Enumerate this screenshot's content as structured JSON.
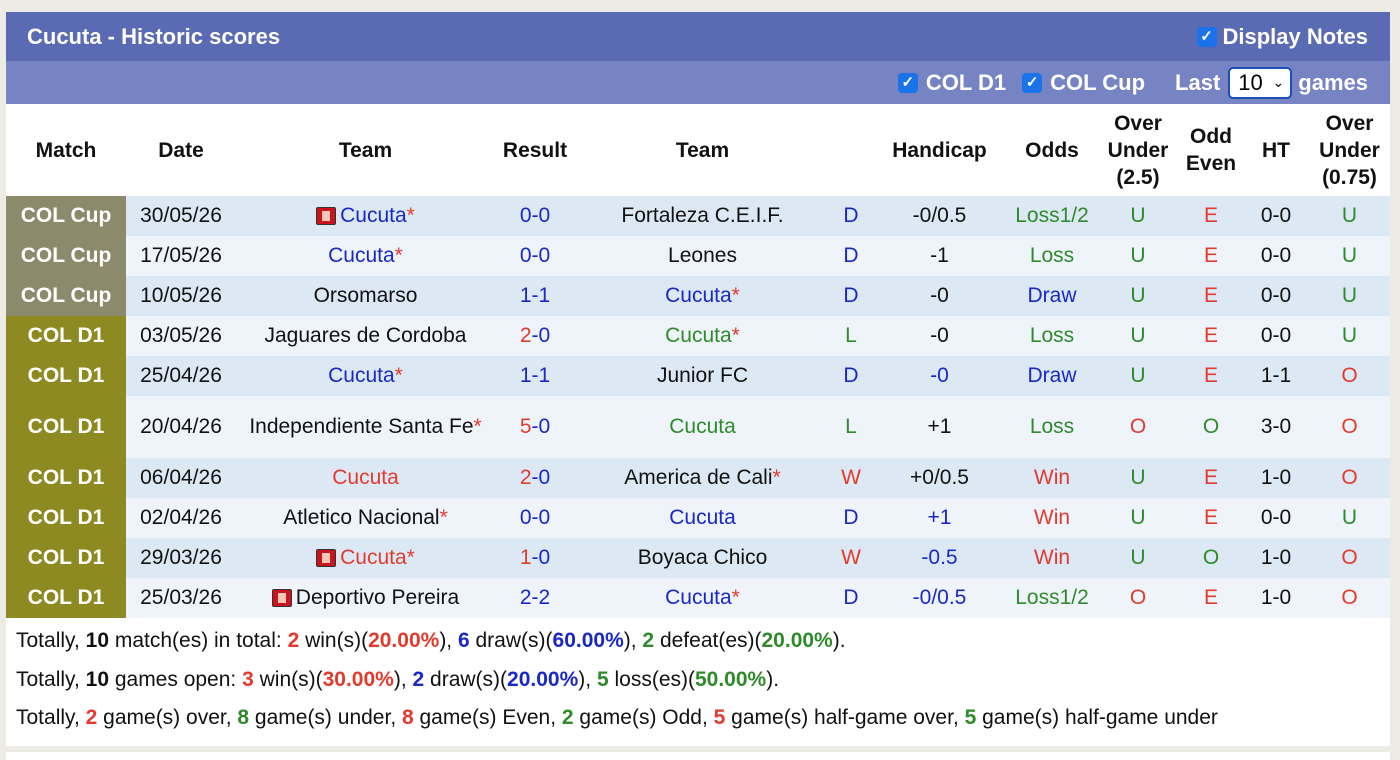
{
  "title": "Cucuta - Historic scores",
  "display_notes_label": "Display Notes",
  "filters": {
    "col_d1": "COL D1",
    "col_cup": "COL Cup",
    "last_label": "Last",
    "games_value": "10",
    "games_label": "games"
  },
  "columns": {
    "match": "Match",
    "date": "Date",
    "team1": "Team",
    "result": "Result",
    "team2": "Team",
    "handicap": "Handicap",
    "odds": "Odds",
    "ou_l1": "Over",
    "ou_l2": "Under",
    "ou_l3": "(2.5)",
    "oe_l1": "Odd",
    "oe_l2": "Even",
    "ht": "HT",
    "ou2_l1": "Over",
    "ou2_l2": "Under",
    "ou2_l3": "(0.75)"
  },
  "rows": [
    {
      "league": "COL Cup",
      "date": "30/05/26",
      "home": "Cucuta",
      "home_star": "*",
      "home_color": "b",
      "home_badge": true,
      "h_score": "0",
      "a_score": "0",
      "h_score_color": "b",
      "sep_color": "b",
      "a_score_color": "b",
      "away": "Fortaleza C.E.I.F.",
      "away_star": "",
      "away_color": "k",
      "away_badge": false,
      "res": "D",
      "res_color": "b",
      "handicap": "-0/0.5",
      "handicap_color": "k",
      "odds": "Loss1/2",
      "odds_color": "g",
      "ou": "U",
      "ou_color": "g",
      "oe": "E",
      "oe_color": "r",
      "ht": "0-0",
      "ou2": "U",
      "ou2_color": "g"
    },
    {
      "league": "COL Cup",
      "date": "17/05/26",
      "home": "Cucuta",
      "home_star": "*",
      "home_color": "b",
      "home_badge": false,
      "h_score": "0",
      "a_score": "0",
      "h_score_color": "b",
      "sep_color": "b",
      "a_score_color": "b",
      "away": "Leones",
      "away_star": "",
      "away_color": "k",
      "away_badge": false,
      "res": "D",
      "res_color": "b",
      "handicap": "-1",
      "handicap_color": "k",
      "odds": "Loss",
      "odds_color": "g",
      "ou": "U",
      "ou_color": "g",
      "oe": "E",
      "oe_color": "r",
      "ht": "0-0",
      "ou2": "U",
      "ou2_color": "g"
    },
    {
      "league": "COL Cup",
      "date": "10/05/26",
      "home": "Orsomarso",
      "home_star": "",
      "home_color": "k",
      "home_badge": false,
      "h_score": "1",
      "a_score": "1",
      "h_score_color": "b",
      "sep_color": "b",
      "a_score_color": "b",
      "away": "Cucuta",
      "away_star": "*",
      "away_color": "b",
      "away_badge": false,
      "res": "D",
      "res_color": "b",
      "handicap": "-0",
      "handicap_color": "k",
      "odds": "Draw",
      "odds_color": "b",
      "ou": "U",
      "ou_color": "g",
      "oe": "E",
      "oe_color": "r",
      "ht": "0-0",
      "ou2": "U",
      "ou2_color": "g"
    },
    {
      "league": "COL D1",
      "date": "03/05/26",
      "home": "Jaguares de Cordoba",
      "home_star": "",
      "home_color": "k",
      "home_badge": false,
      "h_score": "2",
      "a_score": "0",
      "h_score_color": "r",
      "sep_color": "b",
      "a_score_color": "b",
      "away": "Cucuta",
      "away_star": "*",
      "away_color": "g",
      "away_badge": false,
      "res": "L",
      "res_color": "g",
      "handicap": "-0",
      "handicap_color": "k",
      "odds": "Loss",
      "odds_color": "g",
      "ou": "U",
      "ou_color": "g",
      "oe": "E",
      "oe_color": "r",
      "ht": "0-0",
      "ou2": "U",
      "ou2_color": "g"
    },
    {
      "league": "COL D1",
      "date": "25/04/26",
      "home": "Cucuta",
      "home_star": "*",
      "home_color": "b",
      "home_badge": false,
      "h_score": "1",
      "a_score": "1",
      "h_score_color": "b",
      "sep_color": "b",
      "a_score_color": "b",
      "away": "Junior FC",
      "away_star": "",
      "away_color": "k",
      "away_badge": false,
      "res": "D",
      "res_color": "b",
      "handicap": "-0",
      "handicap_color": "b",
      "odds": "Draw",
      "odds_color": "b",
      "ou": "U",
      "ou_color": "g",
      "oe": "E",
      "oe_color": "r",
      "ht": "1-1",
      "ou2": "O",
      "ou2_color": "r"
    },
    {
      "league": "COL D1",
      "date": "20/04/26",
      "home": "Independiente Santa Fe",
      "home_star": "*",
      "home_color": "k",
      "home_badge": false,
      "h_score": "5",
      "a_score": "0",
      "h_score_color": "r",
      "sep_color": "b",
      "a_score_color": "b",
      "away": "Cucuta",
      "away_star": "",
      "away_color": "g",
      "away_badge": false,
      "res": "L",
      "res_color": "g",
      "handicap": "+1",
      "handicap_color": "k",
      "odds": "Loss",
      "odds_color": "g",
      "ou": "O",
      "ou_color": "r",
      "oe": "O",
      "oe_color": "g",
      "ht": "3-0",
      "ou2": "O",
      "ou2_color": "r",
      "tall": true
    },
    {
      "league": "COL D1",
      "date": "06/04/26",
      "home": "Cucuta",
      "home_star": "",
      "home_color": "r",
      "home_badge": false,
      "h_score": "2",
      "a_score": "0",
      "h_score_color": "r",
      "sep_color": "b",
      "a_score_color": "b",
      "away": "America de Cali",
      "away_star": "*",
      "away_color": "k",
      "away_badge": false,
      "res": "W",
      "res_color": "r",
      "handicap": "+0/0.5",
      "handicap_color": "k",
      "odds": "Win",
      "odds_color": "r",
      "ou": "U",
      "ou_color": "g",
      "oe": "E",
      "oe_color": "r",
      "ht": "1-0",
      "ou2": "O",
      "ou2_color": "r"
    },
    {
      "league": "COL D1",
      "date": "02/04/26",
      "home": "Atletico Nacional",
      "home_star": "*",
      "home_color": "k",
      "home_badge": false,
      "h_score": "0",
      "a_score": "0",
      "h_score_color": "b",
      "sep_color": "b",
      "a_score_color": "b",
      "away": "Cucuta",
      "away_star": "",
      "away_color": "b",
      "away_badge": false,
      "res": "D",
      "res_color": "b",
      "handicap": "+1",
      "handicap_color": "b",
      "odds": "Win",
      "odds_color": "r",
      "ou": "U",
      "ou_color": "g",
      "oe": "E",
      "oe_color": "r",
      "ht": "0-0",
      "ou2": "U",
      "ou2_color": "g"
    },
    {
      "league": "COL D1",
      "date": "29/03/26",
      "home": "Cucuta",
      "home_star": "*",
      "home_color": "r",
      "home_badge": true,
      "h_score": "1",
      "a_score": "0",
      "h_score_color": "r",
      "sep_color": "b",
      "a_score_color": "b",
      "away": "Boyaca Chico",
      "away_star": "",
      "away_color": "k",
      "away_badge": false,
      "res": "W",
      "res_color": "r",
      "handicap": "-0.5",
      "handicap_color": "b",
      "odds": "Win",
      "odds_color": "r",
      "ou": "U",
      "ou_color": "g",
      "oe": "O",
      "oe_color": "g",
      "ht": "1-0",
      "ou2": "O",
      "ou2_color": "r"
    },
    {
      "league": "COL D1",
      "date": "25/03/26",
      "home": "Deportivo Pereira",
      "home_star": "",
      "home_color": "k",
      "home_badge": true,
      "h_score": "2",
      "a_score": "2",
      "h_score_color": "b",
      "sep_color": "b",
      "a_score_color": "b",
      "away": "Cucuta",
      "away_star": "*",
      "away_color": "b",
      "away_badge": false,
      "res": "D",
      "res_color": "b",
      "handicap": "-0/0.5",
      "handicap_color": "b",
      "odds": "Loss1/2",
      "odds_color": "g",
      "ou": "O",
      "ou_color": "r",
      "oe": "E",
      "oe_color": "r",
      "ht": "1-0",
      "ou2": "O",
      "ou2_color": "r"
    }
  ],
  "summary": [
    [
      [
        "Totally, ",
        "k",
        false
      ],
      [
        "10",
        "k",
        true
      ],
      [
        " match(es) in total: ",
        "k",
        false
      ],
      [
        "2",
        "r",
        true
      ],
      [
        " win(s)(",
        "k",
        false
      ],
      [
        "20.00%",
        "r",
        true
      ],
      [
        "), ",
        "k",
        false
      ],
      [
        "6",
        "b",
        true
      ],
      [
        " draw(s)(",
        "k",
        false
      ],
      [
        "60.00%",
        "b",
        true
      ],
      [
        "), ",
        "k",
        false
      ],
      [
        "2",
        "g",
        true
      ],
      [
        " defeat(es)(",
        "k",
        false
      ],
      [
        "20.00%",
        "g",
        true
      ],
      [
        ").",
        "k",
        false
      ]
    ],
    [
      [
        "Totally, ",
        "k",
        false
      ],
      [
        "10",
        "k",
        true
      ],
      [
        " games open: ",
        "k",
        false
      ],
      [
        "3",
        "r",
        true
      ],
      [
        " win(s)(",
        "k",
        false
      ],
      [
        "30.00%",
        "r",
        true
      ],
      [
        "), ",
        "k",
        false
      ],
      [
        "2",
        "b",
        true
      ],
      [
        " draw(s)(",
        "k",
        false
      ],
      [
        "20.00%",
        "b",
        true
      ],
      [
        "), ",
        "k",
        false
      ],
      [
        "5",
        "g",
        true
      ],
      [
        " loss(es)(",
        "k",
        false
      ],
      [
        "50.00%",
        "g",
        true
      ],
      [
        ").",
        "k",
        false
      ]
    ],
    [
      [
        "Totally, ",
        "k",
        false
      ],
      [
        "2",
        "r",
        true
      ],
      [
        " game(s) over, ",
        "k",
        false
      ],
      [
        "8",
        "g",
        true
      ],
      [
        " game(s) under, ",
        "k",
        false
      ],
      [
        "8",
        "r",
        true
      ],
      [
        " game(s) Even, ",
        "k",
        false
      ],
      [
        "2",
        "g",
        true
      ],
      [
        " game(s) Odd, ",
        "k",
        false
      ],
      [
        "5",
        "r",
        true
      ],
      [
        " game(s) half-game over, ",
        "k",
        false
      ],
      [
        "5",
        "g",
        true
      ],
      [
        " game(s) half-game under",
        "k",
        false
      ]
    ]
  ]
}
